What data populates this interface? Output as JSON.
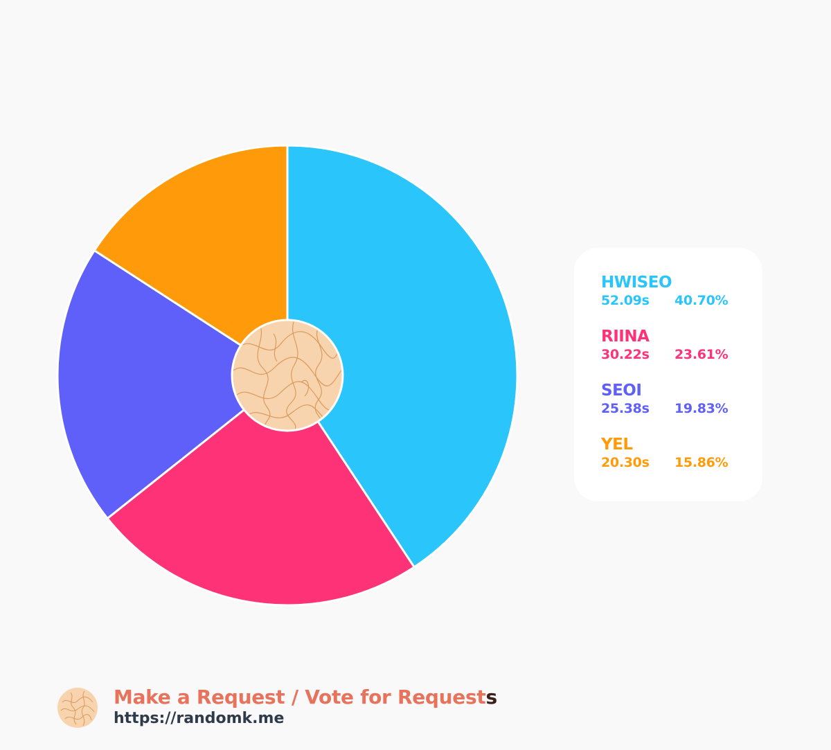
{
  "chart_data": {
    "type": "pie",
    "title": "",
    "slices": [
      {
        "name": "HWISEO",
        "seconds": "52.09s",
        "percent_label": "40.70%",
        "value": 40.7,
        "color": "#29c5fb"
      },
      {
        "name": "RIINA",
        "seconds": "30.22s",
        "percent_label": "23.61%",
        "value": 23.61,
        "color": "#fe3277"
      },
      {
        "name": "SEOI",
        "seconds": "25.38s",
        "percent_label": "19.83%",
        "value": 19.83,
        "color": "#5f5ff9"
      },
      {
        "name": "YEL",
        "seconds": "20.30s",
        "percent_label": "15.86%",
        "value": 15.86,
        "color": "#ff9b0a"
      }
    ],
    "legend_position": "right",
    "center_image": "wavy-line-pattern-icon"
  },
  "footer": {
    "title_main": "Make a Request / Vote for Request",
    "title_last": "s",
    "url": "https://randomk.me",
    "logo_icon": "wavy-line-pattern-icon"
  },
  "colors": {
    "background": "#f9f9f9",
    "logo_fill": "#f8d4ae",
    "logo_lines": "#d99a5b",
    "footer_title": "#e8735d",
    "footer_url": "#2f3a4a"
  }
}
